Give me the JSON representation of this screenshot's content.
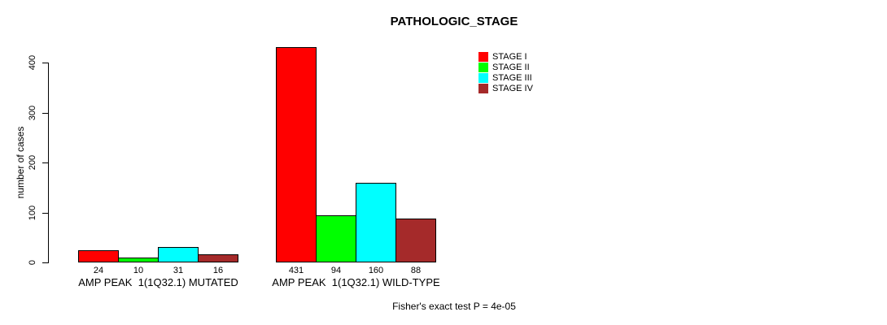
{
  "chart_data": {
    "type": "bar",
    "title": "PATHOLOGIC_STAGE",
    "xlabel": "",
    "ylabel": "number of cases",
    "ylim": [
      0,
      400
    ],
    "yticks": [
      "0",
      "100",
      "200",
      "300",
      "400"
    ],
    "grid": false,
    "legend_position": "top-right",
    "categories": [
      "AMP PEAK  1(1Q32.1) MUTATED",
      "AMP PEAK  1(1Q32.1) WILD-TYPE"
    ],
    "series": [
      {
        "name": "STAGE I",
        "color": "#ff0000",
        "values": [
          24,
          431
        ]
      },
      {
        "name": "STAGE II",
        "color": "#00ff00",
        "values": [
          10,
          94
        ]
      },
      {
        "name": "STAGE III",
        "color": "#00ffff",
        "values": [
          31,
          160
        ]
      },
      {
        "name": "STAGE IV",
        "color": "#a52a2a",
        "values": [
          16,
          88
        ]
      }
    ],
    "bar_value_labels": [
      [
        24,
        10,
        31,
        16
      ],
      [
        431,
        94,
        160,
        88
      ]
    ],
    "annotation": "Fisher's exact test P = 4e-05"
  }
}
